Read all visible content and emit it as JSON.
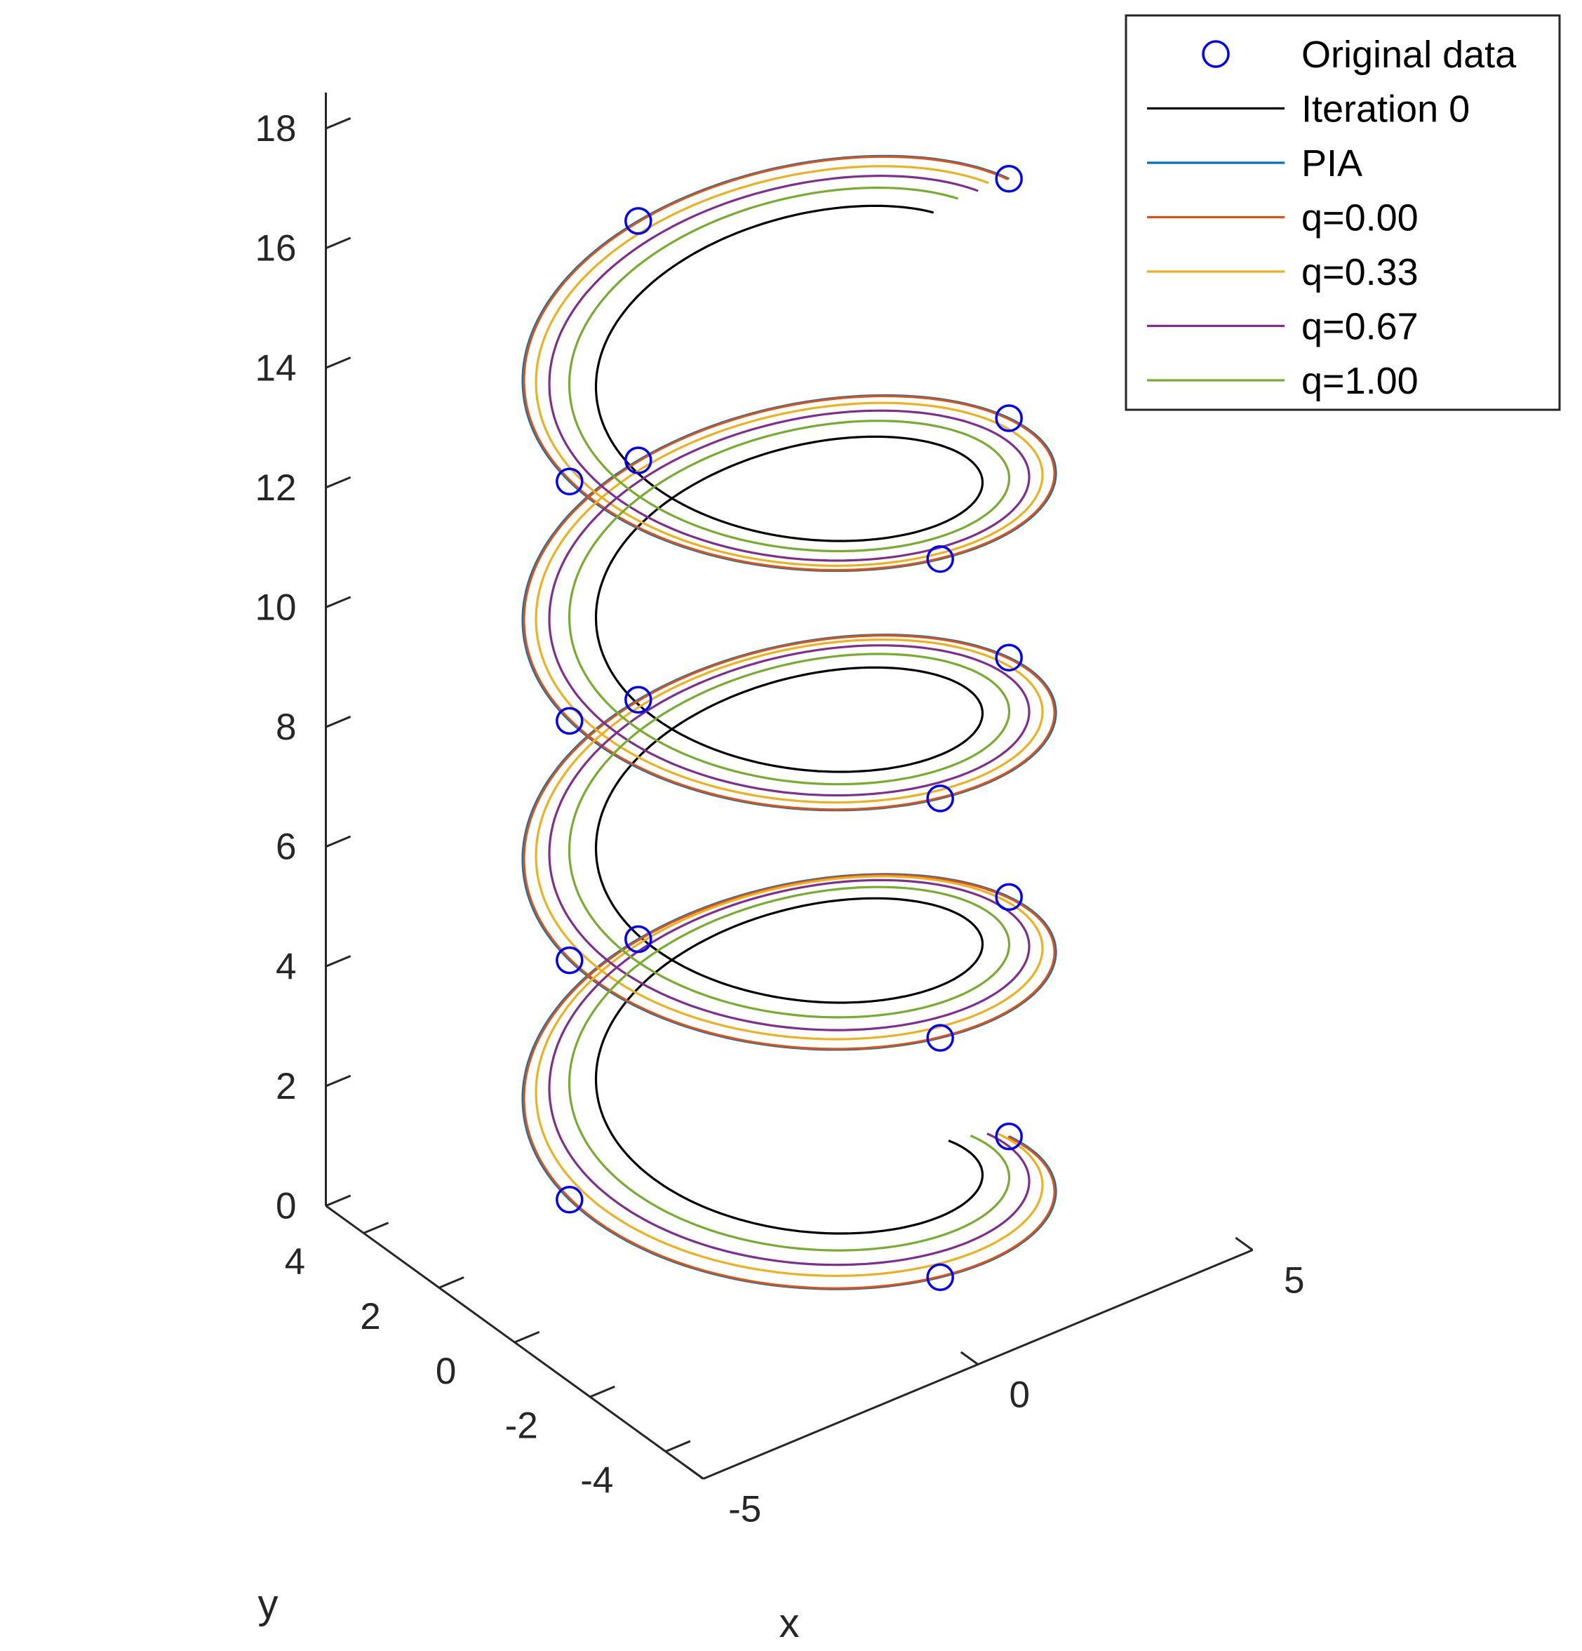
{
  "chart_data": {
    "type": "line3d",
    "xlabel": "x",
    "ylabel": "y",
    "zlabel": "",
    "x_ticks": [
      "-5",
      "0",
      "5"
    ],
    "y_ticks": [
      "4",
      "2",
      "0",
      "-2",
      "-4"
    ],
    "z_ticks": [
      "18",
      "16",
      "14",
      "12",
      "10",
      "8",
      "6",
      "4",
      "2",
      "0"
    ],
    "xlim": [
      -5,
      5
    ],
    "ylim": [
      -5,
      5
    ],
    "zlim": [
      0,
      18
    ],
    "grid": false,
    "legend_position": "top-right",
    "original_data": {
      "name": "Original data",
      "color": "#0000ff",
      "marker": "circle",
      "points": [
        {
          "x": 4.0,
          "y": 0.0,
          "z": 0.0
        },
        {
          "x": 0.0,
          "y": -4.0,
          "z": 1.0
        },
        {
          "x": -4.0,
          "y": 0.0,
          "z": 2.0
        },
        {
          "x": 0.0,
          "y": 4.0,
          "z": 3.0
        },
        {
          "x": 4.0,
          "y": 0.0,
          "z": 4.0
        },
        {
          "x": 0.0,
          "y": -4.0,
          "z": 5.0
        },
        {
          "x": -4.0,
          "y": 0.0,
          "z": 6.0
        },
        {
          "x": 0.0,
          "y": 4.0,
          "z": 7.0
        },
        {
          "x": 4.0,
          "y": 0.0,
          "z": 8.0
        },
        {
          "x": 0.0,
          "y": -4.0,
          "z": 9.0
        },
        {
          "x": -4.0,
          "y": 0.0,
          "z": 10.0
        },
        {
          "x": 0.0,
          "y": 4.0,
          "z": 11.0
        },
        {
          "x": 4.0,
          "y": 0.0,
          "z": 12.0
        },
        {
          "x": 0.0,
          "y": -4.0,
          "z": 13.0
        },
        {
          "x": -4.0,
          "y": 0.0,
          "z": 14.0
        },
        {
          "x": 0.0,
          "y": 4.0,
          "z": 15.0
        },
        {
          "x": 4.0,
          "y": 0.0,
          "z": 16.0
        }
      ]
    },
    "series": [
      {
        "name": "Iteration 0",
        "color": "#000000",
        "radius": 2.9,
        "z_start": 0.35,
        "z_end": 15.7,
        "t_end": 3.98
      },
      {
        "name": "PIA",
        "color": "#0072bd",
        "radius": 4.0,
        "z_start": 0.0,
        "z_end": 16.0,
        "t_end": 4.0
      },
      {
        "name": "q=0.00",
        "color": "#d95319",
        "radius": 3.98,
        "z_start": 0.0,
        "z_end": 16.0,
        "t_end": 4.0
      },
      {
        "name": "q=0.33",
        "color": "#edb120",
        "radius": 3.8,
        "z_start": 0.12,
        "z_end": 15.9,
        "t_end": 3.99
      },
      {
        "name": "q=0.67",
        "color": "#7e2f8e",
        "radius": 3.6,
        "z_start": 0.2,
        "z_end": 15.85,
        "t_end": 3.99
      },
      {
        "name": "q=1.00",
        "color": "#77ac30",
        "radius": 3.3,
        "z_start": 0.28,
        "z_end": 15.8,
        "t_end": 3.985
      }
    ]
  },
  "legend": {
    "items": [
      {
        "label": "Original data"
      },
      {
        "label": "Iteration 0"
      },
      {
        "label": "PIA"
      },
      {
        "label": "q=0.00"
      },
      {
        "label": "q=0.33"
      },
      {
        "label": "q=0.67"
      },
      {
        "label": "q=1.00"
      }
    ]
  }
}
